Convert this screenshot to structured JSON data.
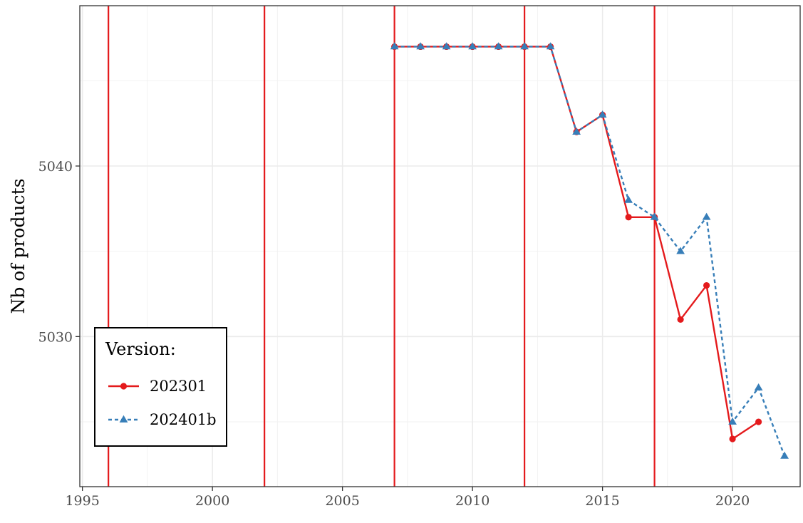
{
  "chart_data": {
    "type": "line",
    "ylabel": "Nb of products",
    "xlabel": "",
    "xlim": [
      1994.9,
      2022.6
    ],
    "ylim": [
      5021.2,
      5049.4
    ],
    "x_ticks": [
      1995,
      2000,
      2005,
      2010,
      2015,
      2020
    ],
    "y_ticks": [
      5030,
      5040
    ],
    "y_minor_ticks": [
      5025,
      5035,
      5045
    ],
    "x_minor_ticks": [
      1997.5,
      2002.5,
      2007.5,
      2012.5,
      2017.5
    ],
    "grid": true,
    "vertical_lines": {
      "x": [
        1996,
        2002,
        2007,
        2012,
        2017
      ],
      "color": "#e41a1c"
    },
    "legend": {
      "title": "Version:",
      "position": "bottom-left"
    },
    "series": [
      {
        "name": "202301",
        "color": "#e41a1c",
        "line_style": "solid",
        "marker": "circle",
        "x": [
          2007,
          2008,
          2009,
          2010,
          2011,
          2012,
          2013,
          2014,
          2015,
          2016,
          2017,
          2018,
          2019,
          2020,
          2021
        ],
        "y": [
          5047,
          5047,
          5047,
          5047,
          5047,
          5047,
          5047,
          5042,
          5043,
          5037,
          5037,
          5031,
          5033,
          5024,
          5025
        ]
      },
      {
        "name": "202401b",
        "color": "#377eb8",
        "line_style": "dashed",
        "marker": "triangle",
        "x": [
          2007,
          2008,
          2009,
          2010,
          2011,
          2012,
          2013,
          2014,
          2015,
          2016,
          2017,
          2018,
          2019,
          2020,
          2021,
          2022
        ],
        "y": [
          5047,
          5047,
          5047,
          5047,
          5047,
          5047,
          5047,
          5042,
          5043,
          5038,
          5037,
          5035,
          5037,
          5025,
          5027,
          5023
        ]
      }
    ]
  }
}
